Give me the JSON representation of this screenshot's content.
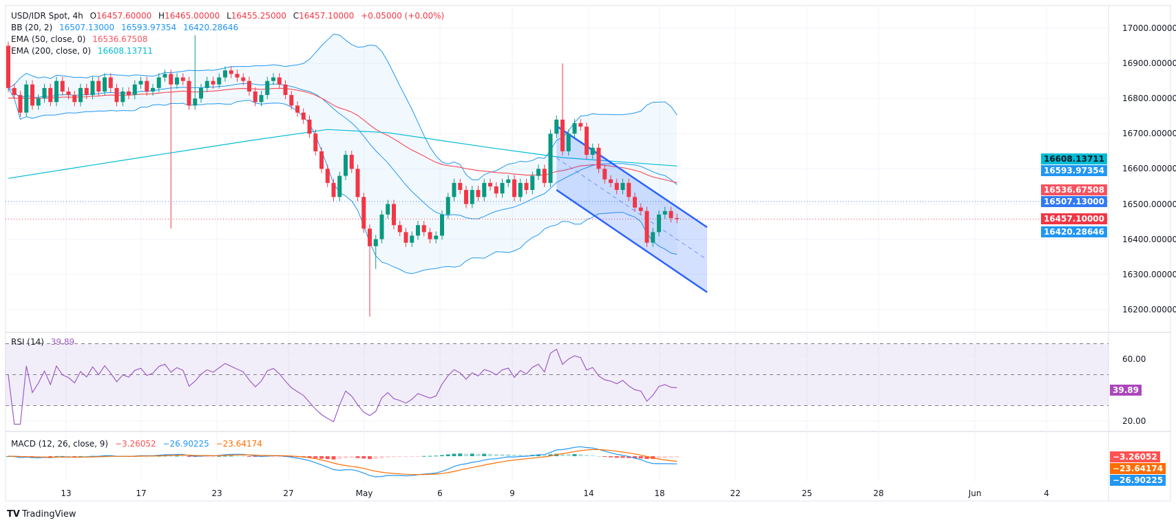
{
  "header": {
    "symbol": "USD/IDR Spot, 4h",
    "o_label": "O",
    "o": "16457.60000",
    "h_label": "H",
    "h": "16465.00000",
    "l_label": "L",
    "l": "16455.25000",
    "c_label": "C",
    "c": "16457.10000",
    "change": "+0.05000 (+0.00%)"
  },
  "indicators": {
    "bb": {
      "label": "BB (20, 2)",
      "basis": "16507.13000",
      "upper": "16593.97354",
      "lower": "16420.28646"
    },
    "ema50": {
      "label": "EMA (50, close, 0)",
      "value": "16536.67508"
    },
    "ema200": {
      "label": "EMA (200, close, 0)",
      "value": "16608.13711"
    },
    "rsi": {
      "label": "RSI (14)",
      "value": "39.89"
    },
    "macd": {
      "label": "MACD (12, 26, close, 9)",
      "hist": "−3.26052",
      "macd": "−26.90225",
      "signal": "−23.64174"
    }
  },
  "colors": {
    "up": "#089981",
    "down": "#f23645",
    "bb": "#2196f3",
    "ema50": "#f7525f",
    "ema200": "#00bcd4",
    "rsi": "#9c5cc6",
    "macd": "#2196f3",
    "signal": "#ff6d00",
    "channel": "#2962ff"
  },
  "price_axis": {
    "ticks": [
      "17000.00000",
      "16900.00000",
      "16800.00000",
      "16700.00000",
      "16600.00000",
      "16500.00000",
      "16400.00000",
      "16300.00000",
      "16200.00000"
    ]
  },
  "price_tags": [
    {
      "text": "16608.13711",
      "color": "#00bcd4",
      "fg": "#131722"
    },
    {
      "text": "16593.97354",
      "color": "#2196f3",
      "fg": "#ffffff"
    },
    {
      "text": "16536.67508",
      "color": "#f7525f",
      "fg": "#ffffff"
    },
    {
      "text": "16507.13000",
      "color": "#3179f5",
      "fg": "#ffffff"
    },
    {
      "text": "16457.10000",
      "color": "#f23645",
      "fg": "#ffffff"
    },
    {
      "text": "16420.28646",
      "color": "#2196f3",
      "fg": "#ffffff"
    }
  ],
  "rsi_axis": {
    "ticks": [
      "60.00",
      "20.00"
    ],
    "tag": "39.89",
    "tag_color": "#ab47bc"
  },
  "macd_tags": [
    {
      "text": "−3.26052",
      "color": "#ff5252"
    },
    {
      "text": "−23.64174",
      "color": "#ff6d00"
    },
    {
      "text": "−26.90225",
      "color": "#2196f3"
    }
  ],
  "time_axis": {
    "labels": [
      "13",
      "17",
      "23",
      "27",
      "May",
      "6",
      "9",
      "14",
      "18",
      "22",
      "25",
      "28",
      "Jun",
      "4"
    ]
  },
  "branding": {
    "logo": "TradingView"
  },
  "chart_data": {
    "type": "candlestick",
    "symbol": "USD/IDR",
    "interval": "4h",
    "ylim": [
      16160,
      17050
    ],
    "close": [
      16830,
      16810,
      16760,
      16840,
      16780,
      16800,
      16830,
      16790,
      16850,
      16820,
      16810,
      16790,
      16830,
      16810,
      16850,
      16820,
      16860,
      16830,
      16790,
      16820,
      16810,
      16840,
      16850,
      16820,
      16830,
      16860,
      16870,
      16840,
      16860,
      16850,
      16780,
      16800,
      16830,
      16850,
      16840,
      16860,
      16880,
      16870,
      16860,
      16850,
      16820,
      16790,
      16810,
      16850,
      16860,
      16840,
      16810,
      16780,
      16760,
      16740,
      16700,
      16650,
      16600,
      16560,
      16520,
      16580,
      16640,
      16600,
      16520,
      16430,
      16380,
      16400,
      16470,
      16500,
      16440,
      16420,
      16390,
      16410,
      16440,
      16420,
      16400,
      16410,
      16470,
      16520,
      16560,
      16540,
      16500,
      16540,
      16520,
      16560,
      16550,
      16530,
      16560,
      16570,
      16520,
      16560,
      16540,
      16580,
      16600,
      16560,
      16700,
      16740,
      16650,
      16700,
      16730,
      16720,
      16640,
      16660,
      16600,
      16570,
      16560,
      16540,
      16560,
      16520,
      16490,
      16480,
      16390,
      16420,
      16470,
      16480,
      16460,
      16457
    ],
    "open_first": 16950,
    "notable_wicks": [
      {
        "index": 27,
        "low": 16430
      },
      {
        "index": 31,
        "high": 16980
      },
      {
        "index": 60,
        "low": 16180
      },
      {
        "index": 61,
        "low": 16315
      },
      {
        "index": 92,
        "high": 16900
      }
    ],
    "ema200": [
      [
        0,
        16573
      ],
      [
        20,
        16627
      ],
      [
        40,
        16680
      ],
      [
        53,
        16712
      ],
      [
        63,
        16703
      ],
      [
        80,
        16660
      ],
      [
        92,
        16632
      ],
      [
        111,
        16608
      ]
    ],
    "horizontal_lines": [
      {
        "value": 16507.13,
        "color": "#3179f5",
        "style": "dotted"
      },
      {
        "value": 16457.1,
        "color": "#f23645",
        "style": "dotted"
      }
    ],
    "descending_channel": {
      "start_bar": 91,
      "end_bar": 116,
      "upper": [
        16722,
        16434
      ],
      "lower": [
        16540,
        16249
      ]
    },
    "rsi_levels": [
      70,
      50,
      30
    ],
    "grid": true
  }
}
